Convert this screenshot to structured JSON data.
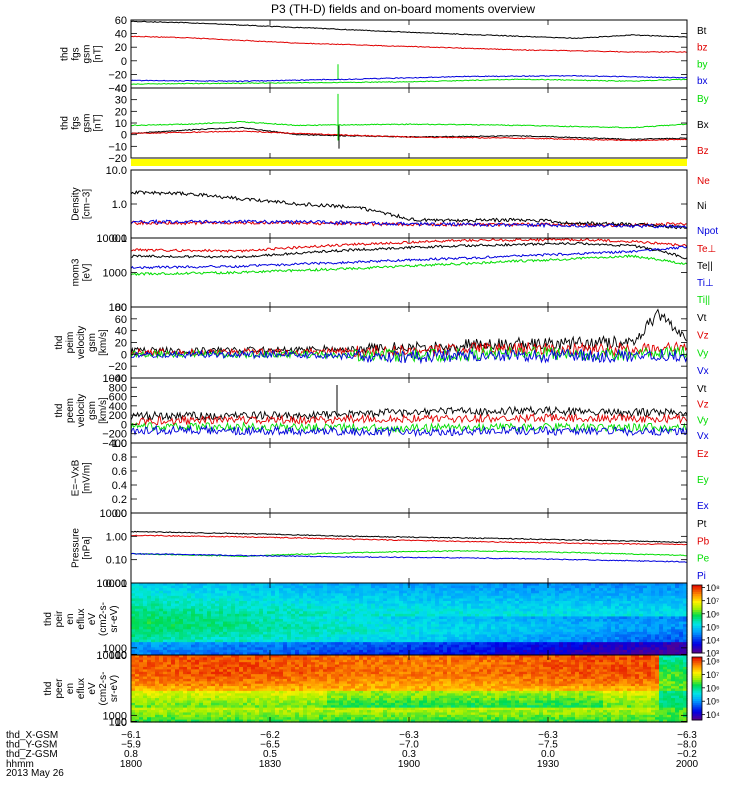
{
  "title": "P3 (TH-D) fields and on-board moments overview",
  "colors": {
    "black": "#000000",
    "red": "#e00000",
    "green": "#00dd00",
    "blue": "#0000dd",
    "yellow": "#ffff00"
  },
  "chart_data": [
    {
      "id": "fgs",
      "type": "line",
      "ylabel": [
        "thd",
        "fgs",
        "gsm",
        "[nT]"
      ],
      "ylim": [
        -40,
        60
      ],
      "yticks": [
        "60",
        "40",
        "20",
        "0",
        "−20",
        "−40"
      ],
      "ytick_values": [
        60,
        40,
        20,
        0,
        -20,
        -40
      ],
      "series": [
        {
          "name": "Bt",
          "color": "#000000",
          "x": [
            0,
            0.1,
            0.3,
            0.5,
            0.7,
            0.8,
            0.9,
            1
          ],
          "y": [
            58,
            56,
            49,
            42,
            36,
            33,
            38,
            35
          ]
        },
        {
          "name": "bz",
          "color": "#e00000",
          "x": [
            0,
            0.1,
            0.3,
            0.5,
            0.7,
            0.9,
            1
          ],
          "y": [
            36,
            34,
            26,
            21,
            16,
            13,
            13
          ]
        },
        {
          "name": "by",
          "color": "#00dd00",
          "x": [
            0,
            0.2,
            0.5,
            0.7,
            0.9,
            1
          ],
          "y": [
            -34,
            -33,
            -31,
            -27,
            -30,
            -27
          ]
        },
        {
          "name": "bx",
          "color": "#0000dd",
          "x": [
            0,
            0.2,
            0.4,
            0.6,
            0.8,
            1
          ],
          "y": [
            -29,
            -30,
            -27,
            -23,
            -22,
            -25
          ]
        }
      ]
    },
    {
      "id": "fgs_gse",
      "type": "line",
      "ylabel": [
        "thd",
        "fgs",
        "gsm",
        "[nT]"
      ],
      "ylim": [
        -20,
        40
      ],
      "yticks": [
        "40",
        "30",
        "20",
        "10",
        "0",
        "−10",
        "−20"
      ],
      "ytick_values": [
        40,
        30,
        20,
        10,
        0,
        -10,
        -20
      ],
      "series": [
        {
          "name": "By",
          "color": "#00dd00",
          "x": [
            0,
            0.1,
            0.2,
            0.3,
            0.5,
            0.7,
            0.9,
            1
          ],
          "y": [
            8,
            9,
            11,
            8,
            9,
            8,
            6,
            9
          ]
        },
        {
          "name": "Bx",
          "color": "#000000",
          "x": [
            0,
            0.1,
            0.2,
            0.3,
            0.5,
            0.7,
            0.9,
            1
          ],
          "y": [
            1,
            4,
            6,
            0,
            -2,
            -1,
            -4,
            -3
          ]
        },
        {
          "name": "Bz",
          "color": "#e00000",
          "x": [
            0,
            0.1,
            0.2,
            0.3,
            0.5,
            0.7,
            0.9,
            1
          ],
          "y": [
            1,
            2,
            3,
            1,
            -2,
            -3,
            -5,
            -4
          ]
        }
      ]
    },
    {
      "id": "density",
      "type": "line",
      "log": true,
      "ylabel": [
        "Density",
        "[cm−3]"
      ],
      "ylim": [
        0.1,
        10
      ],
      "yticks": [
        "10.0",
        "1.0",
        "0.1"
      ],
      "ytick_values": [
        10,
        1,
        0.1
      ],
      "series": [
        {
          "name": "Ne",
          "color": "#e00000",
          "x": [
            0,
            0.3,
            0.5,
            0.7,
            0.9,
            1
          ],
          "y": [
            0.28,
            0.28,
            0.25,
            0.25,
            0.24,
            0.26
          ]
        },
        {
          "name": "Ni",
          "color": "#000000",
          "x": [
            0,
            0.1,
            0.2,
            0.3,
            0.4,
            0.5,
            0.6,
            0.7,
            0.8,
            0.9,
            1
          ],
          "y": [
            2.2,
            2.0,
            1.4,
            1.0,
            0.8,
            0.35,
            0.32,
            0.35,
            0.28,
            0.25,
            0.2
          ]
        },
        {
          "name": "Npot",
          "color": "#0000dd",
          "x": [
            0,
            0.3,
            0.5,
            0.7,
            1
          ],
          "y": [
            0.3,
            0.3,
            0.26,
            0.24,
            0.22
          ]
        }
      ]
    },
    {
      "id": "temperature",
      "type": "line",
      "log": true,
      "ylabel": [
        "mom3",
        "[eV]"
      ],
      "ylim": [
        100,
        10000
      ],
      "yticks": [
        "10000",
        "1000",
        "100"
      ],
      "ytick_values": [
        10000,
        1000,
        100
      ],
      "series": [
        {
          "name": "Te⊥",
          "color": "#e00000",
          "x": [
            0,
            0.2,
            0.4,
            0.6,
            0.8,
            0.9,
            1
          ],
          "y": [
            4500,
            4200,
            6500,
            8500,
            9000,
            8000,
            6000
          ]
        },
        {
          "name": "Te||",
          "color": "#000000",
          "x": [
            0,
            0.2,
            0.4,
            0.6,
            0.8,
            0.9,
            1
          ],
          "y": [
            3000,
            2800,
            4500,
            6000,
            7000,
            6000,
            2500
          ]
        },
        {
          "name": "Ti⊥",
          "color": "#0000dd",
          "x": [
            0,
            0.2,
            0.4,
            0.6,
            0.8,
            0.9,
            1
          ],
          "y": [
            1400,
            1500,
            2000,
            2600,
            3500,
            4000,
            5500
          ]
        },
        {
          "name": "Ti||",
          "color": "#00dd00",
          "x": [
            0,
            0.2,
            0.4,
            0.6,
            0.8,
            0.9,
            1
          ],
          "y": [
            900,
            1000,
            1300,
            1800,
            2500,
            3000,
            1700
          ]
        }
      ]
    },
    {
      "id": "peim_velocity",
      "type": "line",
      "ylabel": [
        "thd",
        "peim",
        "velocity",
        "gsm",
        "[km/s]"
      ],
      "ylim": [
        -40,
        80
      ],
      "yticks": [
        "80",
        "60",
        "40",
        "20",
        "0",
        "−20",
        "−40"
      ],
      "ytick_values": [
        80,
        60,
        40,
        20,
        0,
        -20,
        -40
      ],
      "series": [
        {
          "name": "Vt",
          "color": "#000000",
          "x": [
            0,
            0.3,
            0.5,
            0.7,
            0.9,
            0.95,
            1
          ],
          "y": [
            6,
            8,
            12,
            18,
            20,
            70,
            20
          ]
        },
        {
          "name": "Vz",
          "color": "#e00000",
          "x": [
            0,
            0.3,
            0.5,
            0.7,
            0.9,
            1
          ],
          "y": [
            3,
            4,
            6,
            10,
            8,
            10
          ]
        },
        {
          "name": "Vy",
          "color": "#00dd00",
          "x": [
            0,
            0.3,
            0.5,
            0.7,
            0.9,
            1
          ],
          "y": [
            1,
            0,
            -2,
            2,
            0,
            3
          ]
        },
        {
          "name": "Vx",
          "color": "#0000dd",
          "x": [
            0,
            0.3,
            0.5,
            0.7,
            0.9,
            1
          ],
          "y": [
            0,
            -1,
            -4,
            -2,
            -3,
            -1
          ]
        }
      ]
    },
    {
      "id": "peem_velocity",
      "type": "line",
      "ylabel": [
        "thd",
        "peem",
        "velocity",
        "gsm",
        "[km/s]"
      ],
      "ylim": [
        -400,
        1000
      ],
      "yticks": [
        "1000",
        "800",
        "600",
        "400",
        "200",
        "0",
        "−200",
        "−400"
      ],
      "ytick_values": [
        1000,
        800,
        600,
        400,
        200,
        0,
        -200,
        -400
      ],
      "series": [
        {
          "name": "Vt",
          "color": "#000000",
          "x": [
            0,
            0.3,
            0.5,
            0.7,
            0.9,
            1
          ],
          "y": [
            180,
            200,
            260,
            300,
            260,
            240
          ]
        },
        {
          "name": "Vz",
          "color": "#e00000",
          "x": [
            0,
            0.3,
            0.5,
            0.7,
            0.9,
            1
          ],
          "y": [
            80,
            100,
            120,
            140,
            130,
            120
          ]
        },
        {
          "name": "Vy",
          "color": "#00dd00",
          "x": [
            0,
            0.3,
            0.5,
            0.7,
            0.9,
            1
          ],
          "y": [
            -40,
            -60,
            -80,
            -60,
            -70,
            -60
          ]
        },
        {
          "name": "Vx",
          "color": "#0000dd",
          "x": [
            0,
            0.3,
            0.5,
            0.7,
            0.9,
            1
          ],
          "y": [
            -120,
            -140,
            -160,
            -140,
            -150,
            -130
          ]
        }
      ]
    },
    {
      "id": "efield",
      "type": "line",
      "ylabel": [
        "E=−VxB",
        "[mV/m]"
      ],
      "ylim": [
        0,
        1
      ],
      "yticks": [
        "1.0",
        "0.8",
        "0.6",
        "0.4",
        "0.2",
        "0.0"
      ],
      "ytick_values": [
        1,
        0.8,
        0.6,
        0.4,
        0.2,
        0
      ],
      "series": [
        {
          "name": "Ez",
          "color": "#e00000",
          "x": [],
          "y": []
        },
        {
          "name": "Ey",
          "color": "#00dd00",
          "x": [],
          "y": []
        },
        {
          "name": "Ex",
          "color": "#0000dd",
          "x": [],
          "y": []
        }
      ]
    },
    {
      "id": "pressure",
      "type": "line",
      "log": true,
      "ylabel": [
        "Pressure",
        "[nPa]"
      ],
      "ylim": [
        0.01,
        10
      ],
      "yticks": [
        "10.00",
        "1.00",
        "0.10",
        "0.01"
      ],
      "ytick_values": [
        10,
        1,
        0.1,
        0.01
      ],
      "series": [
        {
          "name": "Pt",
          "color": "#000000",
          "x": [
            0,
            0.2,
            0.4,
            0.6,
            0.8,
            1
          ],
          "y": [
            1.6,
            1.3,
            1.0,
            0.85,
            0.7,
            0.55
          ]
        },
        {
          "name": "Pb",
          "color": "#e00000",
          "x": [
            0,
            0.2,
            0.4,
            0.6,
            0.8,
            1
          ],
          "y": [
            1.1,
            0.95,
            0.75,
            0.6,
            0.5,
            0.45
          ]
        },
        {
          "name": "Pe",
          "color": "#00dd00",
          "x": [
            0,
            0.2,
            0.4,
            0.6,
            0.8,
            1
          ],
          "y": [
            0.18,
            0.14,
            0.2,
            0.24,
            0.2,
            0.15
          ]
        },
        {
          "name": "Pi",
          "color": "#0000dd",
          "x": [
            0,
            0.2,
            0.4,
            0.6,
            0.8,
            1
          ],
          "y": [
            0.18,
            0.15,
            0.13,
            0.12,
            0.1,
            0.08
          ]
        }
      ]
    },
    {
      "id": "peir_spec",
      "type": "heatmap",
      "ylabel": [
        "thd",
        "peir",
        "en",
        "eflux",
        "eV",
        "(cm2-s-",
        "sr-eV)"
      ],
      "ylim": [
        10,
        10000
      ],
      "yticks": [
        "10000",
        "1000",
        "100",
        "10"
      ],
      "ytick_values": [
        10000,
        1000,
        100,
        10
      ],
      "colorbar_ticks": [
        "10⁸",
        "10⁷",
        "10⁶",
        "10⁵",
        "10⁴",
        "10³"
      ],
      "colorbar_tick_values": [
        8,
        7,
        6,
        5,
        4,
        3
      ],
      "color_range": [
        3,
        8.2
      ]
    },
    {
      "id": "peer_spec",
      "type": "heatmap",
      "ylabel": [
        "thd",
        "peer",
        "en",
        "eflux",
        "eV",
        "(cm2-s-",
        "sr-eV)"
      ],
      "ylim": [
        10,
        10000
      ],
      "yticks": [
        "10000",
        "1000",
        "100",
        "10"
      ],
      "ytick_values": [
        10000,
        1000,
        100,
        10
      ],
      "colorbar_ticks": [
        "10⁸",
        "10⁷",
        "10⁶",
        "10⁵",
        "10⁴"
      ],
      "colorbar_tick_values": [
        8,
        7,
        6,
        5,
        4
      ],
      "color_range": [
        3.6,
        8.3
      ]
    }
  ],
  "time_axis": {
    "ticks": [
      {
        "hhmm": "1800",
        "x": "−6.1",
        "y": "−5.9",
        "z": "0.8"
      },
      {
        "hhmm": "1830",
        "x": "−6.2",
        "y": "−6.5",
        "z": "0.5"
      },
      {
        "hhmm": "1900",
        "x": "−6.3",
        "y": "−7.0",
        "z": "0.3"
      },
      {
        "hhmm": "1930",
        "x": "−6.3",
        "y": "−7.5",
        "z": "0.0"
      },
      {
        "hhmm": "2000",
        "x": "−6.3",
        "y": "−8.0",
        "z": "−0.2"
      }
    ],
    "row_labels": [
      "thd_X-GSM",
      "thd_Y-GSM",
      "thd_Z-GSM",
      "hhmm"
    ],
    "date": "2013 May 26"
  }
}
